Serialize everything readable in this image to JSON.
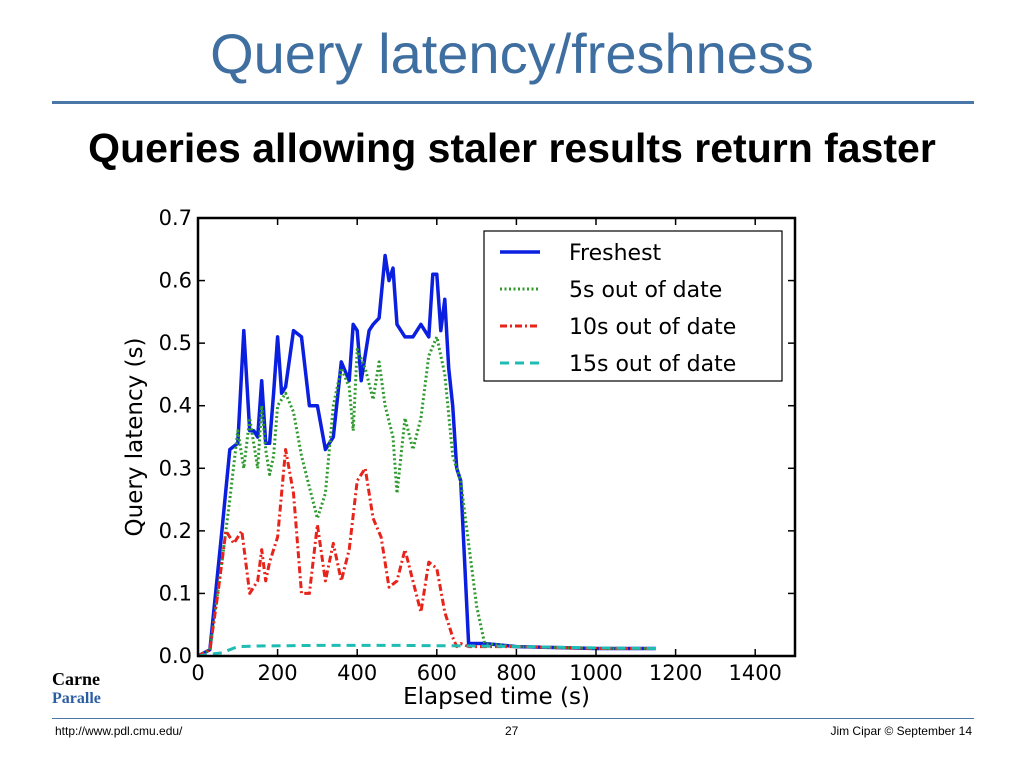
{
  "slide": {
    "title": "Query latency/freshness",
    "subtitle": "Queries allowing staler results return faster"
  },
  "footer": {
    "url": "http://www.pdl.cmu.edu/",
    "page_number": "27",
    "credit": "Jim Cipar  © September 14"
  },
  "logo": {
    "line1": "Carne",
    "line2": "Paralle"
  },
  "colors": {
    "title": "#3f6fa0",
    "rule": "#4a76a8",
    "freshest": "#0a1fe0",
    "stale5": "#2e9a2e",
    "stale10": "#e8231a",
    "stale15": "#1fbcb4"
  },
  "chart_data": {
    "type": "line",
    "title": "",
    "xlabel": "Elapsed time (s)",
    "ylabel": "Query latency (s)",
    "xlim": [
      0,
      1500
    ],
    "ylim": [
      0,
      0.7
    ],
    "xticks": [
      "0",
      "200",
      "400",
      "600",
      "800",
      "1000",
      "1200",
      "1400"
    ],
    "yticks": [
      "0.0",
      "0.1",
      "0.2",
      "0.3",
      "0.4",
      "0.5",
      "0.6",
      "0.7"
    ],
    "grid": false,
    "legend_position": "top-right",
    "series": [
      {
        "name": "Freshest",
        "color": "#0a1fe0",
        "style": "solid",
        "x": [
          0,
          30,
          60,
          80,
          100,
          115,
          130,
          140,
          150,
          160,
          170,
          180,
          190,
          200,
          210,
          220,
          240,
          260,
          280,
          300,
          320,
          330,
          340,
          360,
          380,
          390,
          400,
          410,
          430,
          440,
          455,
          470,
          480,
          490,
          500,
          520,
          540,
          560,
          580,
          590,
          600,
          610,
          620,
          630,
          640,
          650,
          660,
          680,
          700,
          720,
          800,
          1000,
          1150
        ],
        "y": [
          0,
          0.01,
          0.2,
          0.33,
          0.34,
          0.52,
          0.36,
          0.36,
          0.35,
          0.44,
          0.34,
          0.34,
          0.42,
          0.51,
          0.42,
          0.43,
          0.52,
          0.51,
          0.4,
          0.4,
          0.33,
          0.34,
          0.35,
          0.47,
          0.44,
          0.53,
          0.52,
          0.44,
          0.52,
          0.53,
          0.54,
          0.64,
          0.6,
          0.62,
          0.53,
          0.51,
          0.51,
          0.53,
          0.51,
          0.61,
          0.61,
          0.52,
          0.57,
          0.46,
          0.4,
          0.3,
          0.28,
          0.02,
          0.02,
          0.02,
          0.015,
          0.012,
          0.012
        ]
      },
      {
        "name": "5s out of date",
        "color": "#2e9a2e",
        "style": "dotted",
        "x": [
          0,
          30,
          60,
          80,
          100,
          115,
          130,
          150,
          160,
          170,
          180,
          190,
          200,
          220,
          240,
          260,
          280,
          300,
          320,
          340,
          360,
          380,
          390,
          400,
          420,
          440,
          455,
          470,
          490,
          500,
          520,
          540,
          560,
          580,
          600,
          620,
          640,
          660,
          680,
          700,
          720,
          800,
          1000,
          1150
        ],
        "y": [
          0,
          0.01,
          0.15,
          0.25,
          0.36,
          0.3,
          0.38,
          0.3,
          0.4,
          0.33,
          0.29,
          0.32,
          0.4,
          0.42,
          0.39,
          0.32,
          0.27,
          0.22,
          0.26,
          0.4,
          0.46,
          0.43,
          0.36,
          0.49,
          0.46,
          0.41,
          0.47,
          0.4,
          0.35,
          0.26,
          0.38,
          0.33,
          0.38,
          0.48,
          0.51,
          0.45,
          0.32,
          0.28,
          0.18,
          0.08,
          0.02,
          0.015,
          0.012,
          0.012
        ]
      },
      {
        "name": "10s out of date",
        "color": "#e8231a",
        "style": "dashdot",
        "x": [
          0,
          30,
          50,
          70,
          90,
          110,
          130,
          150,
          160,
          170,
          180,
          200,
          220,
          240,
          260,
          280,
          300,
          320,
          340,
          360,
          380,
          400,
          420,
          440,
          460,
          480,
          500,
          520,
          540,
          560,
          580,
          600,
          620,
          640,
          650,
          660,
          680,
          700,
          800,
          1000,
          1150
        ],
        "y": [
          0,
          0.01,
          0.1,
          0.2,
          0.18,
          0.2,
          0.1,
          0.12,
          0.17,
          0.12,
          0.15,
          0.19,
          0.33,
          0.26,
          0.1,
          0.1,
          0.21,
          0.12,
          0.18,
          0.12,
          0.17,
          0.28,
          0.3,
          0.22,
          0.19,
          0.11,
          0.12,
          0.17,
          0.12,
          0.07,
          0.15,
          0.14,
          0.07,
          0.03,
          0.015,
          0.02,
          0.015,
          0.015,
          0.015,
          0.012,
          0.012
        ]
      },
      {
        "name": "15s out of date",
        "color": "#1fbcb4",
        "style": "dashed",
        "x": [
          0,
          30,
          60,
          80,
          100,
          150,
          300,
          500,
          700,
          800,
          1000,
          1150
        ],
        "y": [
          0,
          0.003,
          0.005,
          0.01,
          0.015,
          0.016,
          0.017,
          0.017,
          0.016,
          0.015,
          0.013,
          0.012
        ]
      }
    ]
  }
}
